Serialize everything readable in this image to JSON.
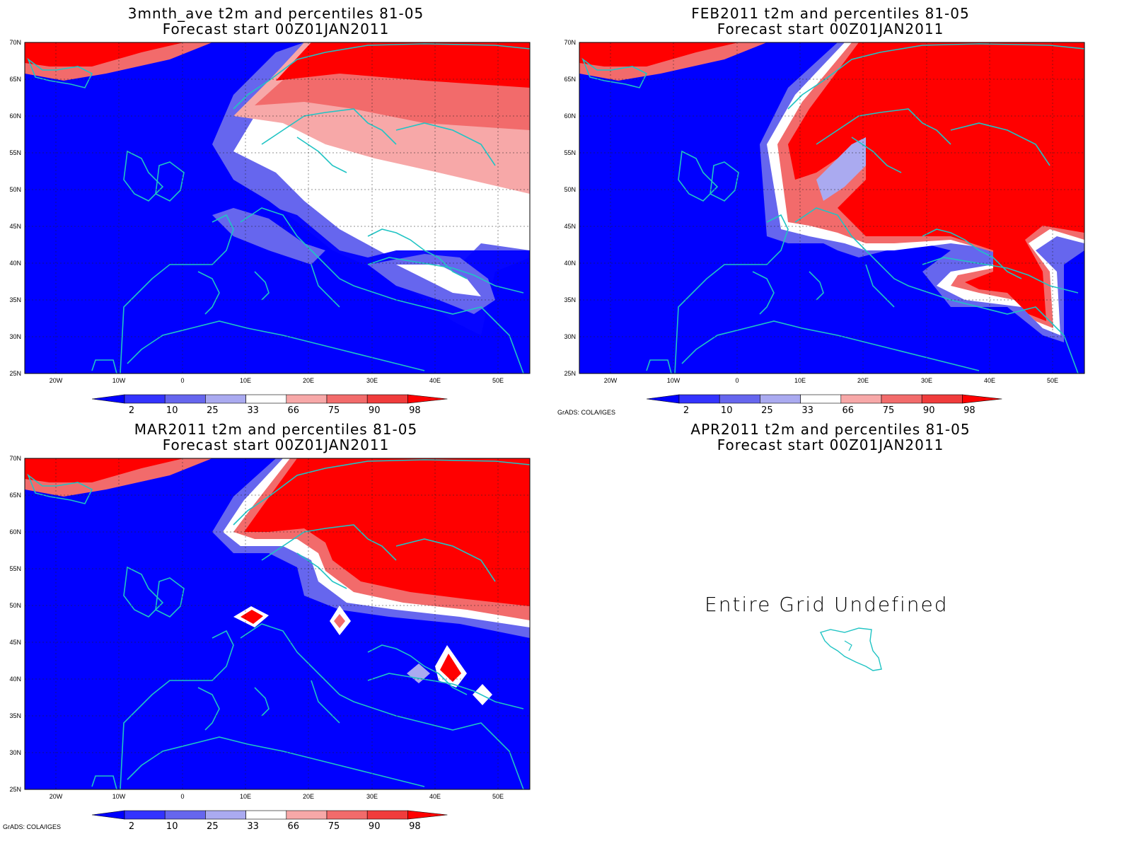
{
  "panels": [
    {
      "title": "3mnth_ave t2m and percentiles 81-05",
      "subtitle": "Forecast start 00Z01JAN2011",
      "state": "defined"
    },
    {
      "title": "FEB2011 t2m and percentiles 81-05",
      "subtitle": "Forecast start 00Z01JAN2011",
      "state": "defined"
    },
    {
      "title": "MAR2011 t2m and percentiles 81-05",
      "subtitle": "Forecast start 00Z01JAN2011",
      "state": "defined"
    },
    {
      "title": "APR2011 t2m and percentiles 81-05",
      "subtitle": "Forecast start 00Z01JAN2011",
      "state": "undefined",
      "message": "Entire Grid Undefined"
    }
  ],
  "map": {
    "lat_labels": [
      "70N",
      "65N",
      "60N",
      "55N",
      "50N",
      "45N",
      "40N",
      "35N",
      "30N",
      "25N"
    ],
    "lon_labels": [
      "20W",
      "10W",
      "0",
      "10E",
      "20E",
      "30E",
      "40E",
      "50E"
    ],
    "lat_range": [
      25,
      70
    ],
    "lon_range": [
      -25,
      55
    ]
  },
  "colorbar": {
    "labels": [
      "2",
      "10",
      "25",
      "33",
      "66",
      "75",
      "90",
      "98"
    ],
    "colors": [
      "#0000ff",
      "#3333ff",
      "#6666ee",
      "#aaaaf0",
      "#ffffff",
      "#f7a8a8",
      "#f26b6b",
      "#f03c3c",
      "#ff0000"
    ]
  },
  "credits": [
    "GrADS: COLA/IGES",
    "GrADS: COLA/IGES"
  ],
  "colors": {
    "cold": "#0000ff",
    "warm": "#ff0000",
    "coast": "#20c4c4",
    "neutral": "#ffffff"
  }
}
